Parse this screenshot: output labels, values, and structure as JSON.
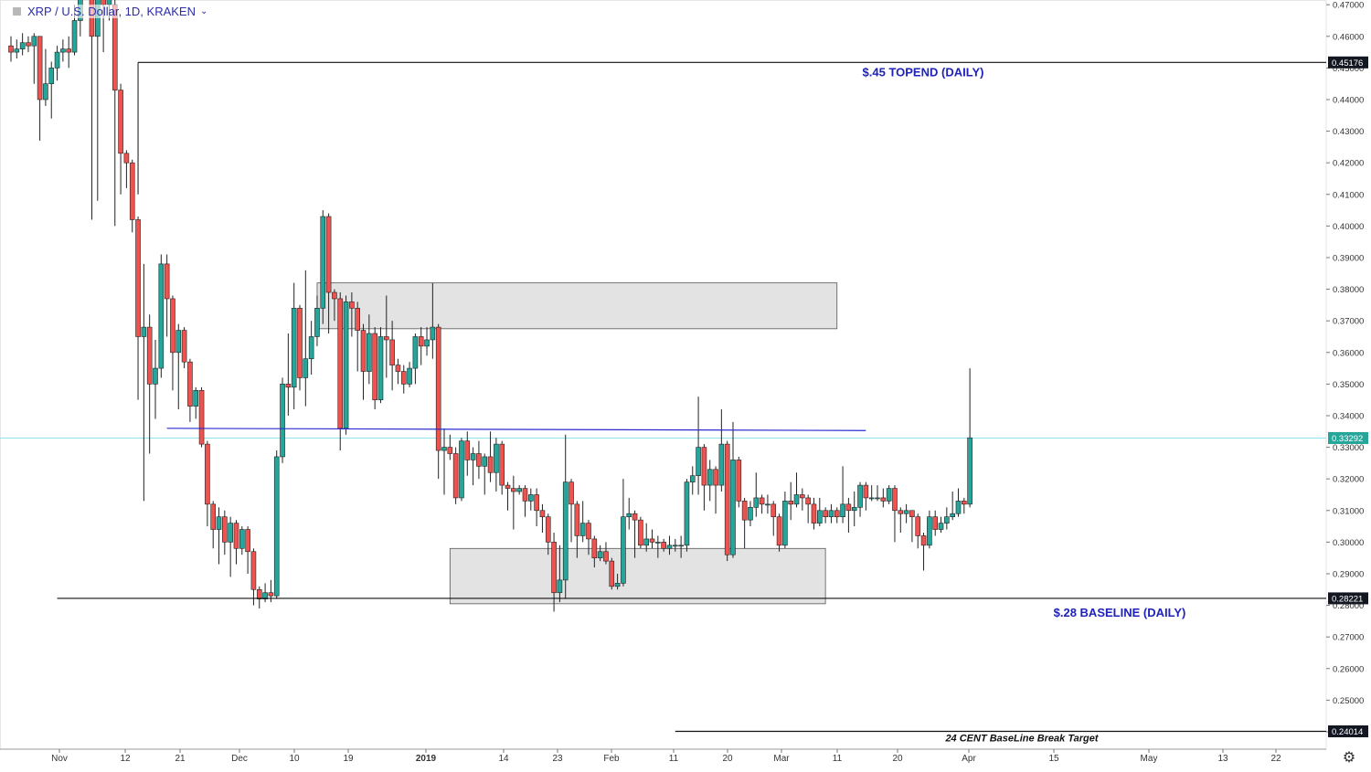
{
  "legend": {
    "symbol_label": "XRP / U.S. Dollar, 1D, KRAKEN",
    "icon": "chart-symbol-icon",
    "dropdown_icon": "chevron-down-icon"
  },
  "settings_icon": "gear-icon",
  "colors": {
    "up": "#26a69a",
    "down": "#ef5350",
    "annotation_text": "#1e22b8",
    "trendline": "#2a2ad0",
    "zone_fill": "#e0e0e0",
    "crosshair": "#8fe3ef"
  },
  "chart_data": {
    "type": "candlestick",
    "title": "XRP / U.S. Dollar, 1D, KRAKEN",
    "ylim": [
      0.2345,
      0.4715
    ],
    "y_ticks": [
      "0.47000",
      "0.46000",
      "0.45000",
      "0.44000",
      "0.43000",
      "0.42000",
      "0.41000",
      "0.40000",
      "0.39000",
      "0.38000",
      "0.37000",
      "0.36000",
      "0.35000",
      "0.34000",
      "0.33000",
      "0.32000",
      "0.31000",
      "0.30000",
      "0.29000",
      "0.28000",
      "0.27000",
      "0.26000",
      "0.25000",
      "0.24000"
    ],
    "x_ticks": [
      "Nov",
      "12",
      "21",
      "Dec",
      "10",
      "19",
      "2019",
      "14",
      "23",
      "Feb",
      "11",
      "20",
      "Mar",
      "11",
      "20",
      "Apr",
      "15",
      "May",
      "13",
      "22"
    ],
    "price_labels": [
      {
        "value": 0.45176,
        "text": "0.45176",
        "style": "dark"
      },
      {
        "value": 0.33292,
        "text": "0.33292",
        "style": "teal"
      },
      {
        "value": 0.28221,
        "text": "0.28221",
        "style": "dark"
      },
      {
        "value": 0.24014,
        "text": "0.24014",
        "style": "dark"
      }
    ],
    "horizontal_levels": [
      {
        "value": 0.45176,
        "from_day": 22,
        "label": "$.45 TOPEND (DAILY)"
      },
      {
        "value": 0.28221,
        "from_day": 8,
        "label": "$.28 BASELINE (DAILY)"
      },
      {
        "value": 0.24014,
        "from_day": 115,
        "label": "24 CENT BaseLine Break Target"
      }
    ],
    "zones": [
      {
        "from_day": 53,
        "to_day": 143,
        "top": 0.382,
        "bottom": 0.3675
      },
      {
        "from_day": 76,
        "to_day": 141,
        "top": 0.298,
        "bottom": 0.2805
      }
    ],
    "trendline": {
      "from_day": 27,
      "to_day": 148,
      "y1": 0.336,
      "y2": 0.3353
    },
    "top_line_anchor": {
      "day": 22,
      "from": 0.41,
      "to": 0.45176
    },
    "crosshair_price": 0.33292,
    "candles": [
      [
        0.457,
        0.455,
        0.46,
        0.452
      ],
      [
        0.455,
        0.456,
        0.459,
        0.453
      ],
      [
        0.456,
        0.458,
        0.461,
        0.454
      ],
      [
        0.458,
        0.457,
        0.46,
        0.455
      ],
      [
        0.457,
        0.46,
        0.461,
        0.445
      ],
      [
        0.46,
        0.44,
        0.46,
        0.427
      ],
      [
        0.44,
        0.445,
        0.456,
        0.438
      ],
      [
        0.445,
        0.45,
        0.452,
        0.434
      ],
      [
        0.45,
        0.455,
        0.457,
        0.446
      ],
      [
        0.455,
        0.456,
        0.459,
        0.452
      ],
      [
        0.456,
        0.455,
        0.46,
        0.45
      ],
      [
        0.455,
        0.465,
        0.47,
        0.454
      ],
      [
        0.465,
        0.475,
        0.478,
        0.46
      ],
      [
        0.485,
        0.485,
        0.486,
        0.482
      ],
      [
        0.475,
        0.46,
        0.476,
        0.402
      ],
      [
        0.46,
        0.475,
        0.478,
        0.408
      ],
      [
        0.475,
        0.47,
        0.476,
        0.455
      ],
      [
        0.47,
        0.475,
        0.476,
        0.465
      ],
      [
        0.47,
        0.443,
        0.473,
        0.4
      ],
      [
        0.443,
        0.423,
        0.445,
        0.41
      ],
      [
        0.423,
        0.42,
        0.424,
        0.412
      ],
      [
        0.42,
        0.402,
        0.421,
        0.398
      ],
      [
        0.402,
        0.365,
        0.403,
        0.345
      ],
      [
        0.365,
        0.368,
        0.388,
        0.313
      ],
      [
        0.368,
        0.35,
        0.372,
        0.328
      ],
      [
        0.35,
        0.355,
        0.364,
        0.339
      ],
      [
        0.355,
        0.388,
        0.391,
        0.352
      ],
      [
        0.388,
        0.377,
        0.391,
        0.365
      ],
      [
        0.377,
        0.36,
        0.378,
        0.348
      ],
      [
        0.36,
        0.367,
        0.369,
        0.342
      ],
      [
        0.367,
        0.357,
        0.368,
        0.355
      ],
      [
        0.357,
        0.343,
        0.358,
        0.338
      ],
      [
        0.343,
        0.348,
        0.349,
        0.339
      ],
      [
        0.348,
        0.331,
        0.349,
        0.33
      ],
      [
        0.331,
        0.312,
        0.332,
        0.305
      ],
      [
        0.312,
        0.304,
        0.313,
        0.298
      ],
      [
        0.304,
        0.308,
        0.311,
        0.293
      ],
      [
        0.308,
        0.3,
        0.31,
        0.296
      ],
      [
        0.3,
        0.306,
        0.308,
        0.289
      ],
      [
        0.306,
        0.298,
        0.307,
        0.293
      ],
      [
        0.298,
        0.304,
        0.305,
        0.296
      ],
      [
        0.304,
        0.297,
        0.305,
        0.29
      ],
      [
        0.297,
        0.285,
        0.298,
        0.28
      ],
      [
        0.285,
        0.282,
        0.286,
        0.279
      ],
      [
        0.282,
        0.284,
        0.287,
        0.281
      ],
      [
        0.284,
        0.283,
        0.288,
        0.281
      ],
      [
        0.283,
        0.327,
        0.329,
        0.282
      ],
      [
        0.327,
        0.35,
        0.352,
        0.325
      ],
      [
        0.35,
        0.349,
        0.366,
        0.34
      ],
      [
        0.349,
        0.374,
        0.382,
        0.342
      ],
      [
        0.374,
        0.352,
        0.375,
        0.348
      ],
      [
        0.352,
        0.358,
        0.386,
        0.343
      ],
      [
        0.358,
        0.365,
        0.37,
        0.353
      ],
      [
        0.365,
        0.374,
        0.378,
        0.362
      ],
      [
        0.374,
        0.403,
        0.405,
        0.369
      ],
      [
        0.403,
        0.379,
        0.404,
        0.366
      ],
      [
        0.379,
        0.377,
        0.38,
        0.37
      ],
      [
        0.377,
        0.336,
        0.379,
        0.329
      ],
      [
        0.336,
        0.376,
        0.378,
        0.334
      ],
      [
        0.376,
        0.374,
        0.379,
        0.365
      ],
      [
        0.374,
        0.367,
        0.376,
        0.354
      ],
      [
        0.367,
        0.354,
        0.369,
        0.345
      ],
      [
        0.354,
        0.366,
        0.372,
        0.35
      ],
      [
        0.366,
        0.345,
        0.368,
        0.342
      ],
      [
        0.345,
        0.365,
        0.368,
        0.344
      ],
      [
        0.365,
        0.364,
        0.378,
        0.352
      ],
      [
        0.364,
        0.356,
        0.37,
        0.348
      ],
      [
        0.356,
        0.354,
        0.358,
        0.35
      ],
      [
        0.354,
        0.35,
        0.356,
        0.347
      ],
      [
        0.35,
        0.355,
        0.357,
        0.349
      ],
      [
        0.355,
        0.365,
        0.366,
        0.35
      ],
      [
        0.365,
        0.362,
        0.368,
        0.356
      ],
      [
        0.362,
        0.364,
        0.368,
        0.359
      ],
      [
        0.364,
        0.368,
        0.382,
        0.358
      ],
      [
        0.368,
        0.329,
        0.369,
        0.32
      ],
      [
        0.329,
        0.33,
        0.336,
        0.315
      ],
      [
        0.33,
        0.328,
        0.334,
        0.326
      ],
      [
        0.328,
        0.314,
        0.33,
        0.312
      ],
      [
        0.314,
        0.332,
        0.333,
        0.313
      ],
      [
        0.332,
        0.326,
        0.335,
        0.321
      ],
      [
        0.326,
        0.328,
        0.33,
        0.318
      ],
      [
        0.328,
        0.324,
        0.332,
        0.32
      ],
      [
        0.324,
        0.327,
        0.328,
        0.315
      ],
      [
        0.327,
        0.322,
        0.335,
        0.319
      ],
      [
        0.322,
        0.331,
        0.333,
        0.316
      ],
      [
        0.331,
        0.318,
        0.332,
        0.315
      ],
      [
        0.318,
        0.317,
        0.319,
        0.31
      ],
      [
        0.317,
        0.316,
        0.321,
        0.304
      ],
      [
        0.316,
        0.317,
        0.318,
        0.315
      ],
      [
        0.317,
        0.313,
        0.318,
        0.308
      ],
      [
        0.313,
        0.315,
        0.317,
        0.31
      ],
      [
        0.315,
        0.31,
        0.317,
        0.305
      ],
      [
        0.31,
        0.308,
        0.312,
        0.303
      ],
      [
        0.308,
        0.3,
        0.309,
        0.296
      ],
      [
        0.3,
        0.284,
        0.303,
        0.278
      ],
      [
        0.284,
        0.288,
        0.299,
        0.281
      ],
      [
        0.288,
        0.319,
        0.334,
        0.282
      ],
      [
        0.319,
        0.312,
        0.32,
        0.3
      ],
      [
        0.312,
        0.302,
        0.313,
        0.295
      ],
      [
        0.302,
        0.306,
        0.313,
        0.3
      ],
      [
        0.306,
        0.301,
        0.307,
        0.296
      ],
      [
        0.301,
        0.295,
        0.302,
        0.292
      ],
      [
        0.295,
        0.297,
        0.299,
        0.294
      ],
      [
        0.297,
        0.294,
        0.3,
        0.293
      ],
      [
        0.294,
        0.286,
        0.295,
        0.285
      ],
      [
        0.286,
        0.287,
        0.29,
        0.285
      ],
      [
        0.287,
        0.308,
        0.32,
        0.286
      ],
      [
        0.308,
        0.309,
        0.314,
        0.304
      ],
      [
        0.309,
        0.307,
        0.31,
        0.295
      ],
      [
        0.307,
        0.299,
        0.308,
        0.298
      ],
      [
        0.299,
        0.301,
        0.306,
        0.297
      ],
      [
        0.301,
        0.3,
        0.304,
        0.298
      ],
      [
        0.3,
        0.3,
        0.302,
        0.295
      ],
      [
        0.3,
        0.298,
        0.301,
        0.297
      ],
      [
        0.298,
        0.299,
        0.302,
        0.296
      ],
      [
        0.299,
        0.299,
        0.301,
        0.297
      ],
      [
        0.299,
        0.299,
        0.302,
        0.295
      ],
      [
        0.299,
        0.319,
        0.32,
        0.297
      ],
      [
        0.319,
        0.321,
        0.324,
        0.315
      ],
      [
        0.321,
        0.33,
        0.346,
        0.315
      ],
      [
        0.33,
        0.318,
        0.331,
        0.31
      ],
      [
        0.318,
        0.323,
        0.326,
        0.313
      ],
      [
        0.323,
        0.318,
        0.324,
        0.309
      ],
      [
        0.318,
        0.331,
        0.342,
        0.316
      ],
      [
        0.331,
        0.296,
        0.332,
        0.294
      ],
      [
        0.296,
        0.326,
        0.338,
        0.295
      ],
      [
        0.326,
        0.313,
        0.327,
        0.311
      ],
      [
        0.313,
        0.307,
        0.314,
        0.298
      ],
      [
        0.307,
        0.311,
        0.313,
        0.305
      ],
      [
        0.311,
        0.314,
        0.322,
        0.308
      ],
      [
        0.314,
        0.312,
        0.315,
        0.309
      ],
      [
        0.312,
        0.312,
        0.315,
        0.309
      ],
      [
        0.312,
        0.308,
        0.313,
        0.302
      ],
      [
        0.308,
        0.299,
        0.309,
        0.297
      ],
      [
        0.299,
        0.313,
        0.316,
        0.298
      ],
      [
        0.313,
        0.312,
        0.319,
        0.307
      ],
      [
        0.312,
        0.315,
        0.322,
        0.311
      ],
      [
        0.315,
        0.314,
        0.317,
        0.31
      ],
      [
        0.314,
        0.312,
        0.315,
        0.306
      ],
      [
        0.312,
        0.306,
        0.314,
        0.304
      ],
      [
        0.306,
        0.31,
        0.314,
        0.305
      ],
      [
        0.31,
        0.308,
        0.311,
        0.306
      ],
      [
        0.308,
        0.31,
        0.312,
        0.306
      ],
      [
        0.31,
        0.308,
        0.311,
        0.306
      ],
      [
        0.308,
        0.312,
        0.324,
        0.306
      ],
      [
        0.312,
        0.31,
        0.314,
        0.303
      ],
      [
        0.31,
        0.311,
        0.316,
        0.305
      ],
      [
        0.311,
        0.318,
        0.319,
        0.308
      ],
      [
        0.318,
        0.314,
        0.319,
        0.31
      ],
      [
        0.314,
        0.314,
        0.318,
        0.313
      ],
      [
        0.314,
        0.314,
        0.318,
        0.313
      ],
      [
        0.314,
        0.313,
        0.317,
        0.311
      ],
      [
        0.313,
        0.317,
        0.318,
        0.312
      ],
      [
        0.317,
        0.31,
        0.318,
        0.3
      ],
      [
        0.31,
        0.309,
        0.311,
        0.303
      ],
      [
        0.309,
        0.31,
        0.312,
        0.306
      ],
      [
        0.31,
        0.308,
        0.31,
        0.3
      ],
      [
        0.308,
        0.302,
        0.309,
        0.298
      ],
      [
        0.302,
        0.299,
        0.303,
        0.291
      ],
      [
        0.299,
        0.308,
        0.31,
        0.298
      ],
      [
        0.308,
        0.304,
        0.31,
        0.302
      ],
      [
        0.304,
        0.306,
        0.308,
        0.303
      ],
      [
        0.306,
        0.308,
        0.311,
        0.304
      ],
      [
        0.308,
        0.309,
        0.316,
        0.307
      ],
      [
        0.309,
        0.313,
        0.317,
        0.308
      ],
      [
        0.313,
        0.312,
        0.314,
        0.309
      ],
      [
        0.312,
        0.333,
        0.355,
        0.311
      ]
    ]
  }
}
